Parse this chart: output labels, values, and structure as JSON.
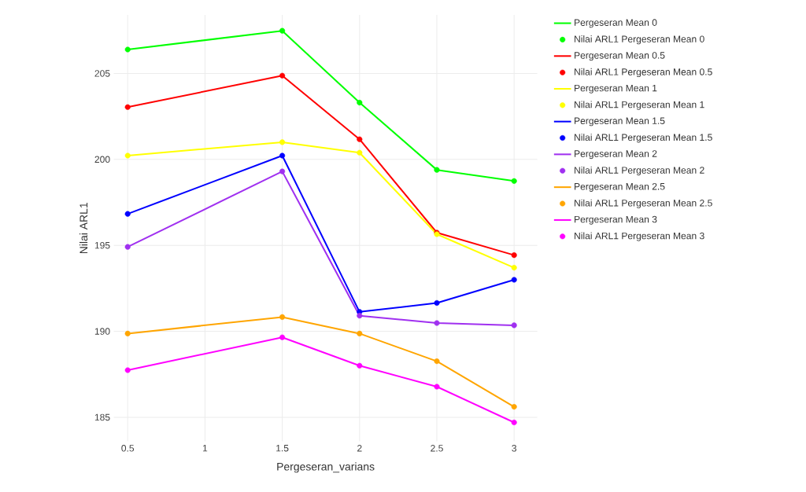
{
  "chart_data": {
    "type": "line",
    "xlabel": "Pergeseran_varians",
    "ylabel": "Nilai ARL1",
    "x": [
      0.5,
      1.5,
      2,
      2.5,
      3
    ],
    "series": [
      {
        "name": "Pergeseran Mean 0",
        "marker": "none",
        "color": "#00ff00",
        "values": [
          206.39,
          207.48,
          203.3,
          199.39,
          198.74
        ]
      },
      {
        "name": "Nilai ARL1 Pergeseran Mean 0",
        "type": "scatter",
        "marker": "circle",
        "color": "#00ff00",
        "values": [
          206.39,
          207.48,
          203.3,
          199.39,
          198.74
        ]
      },
      {
        "name": "Pergeseran Mean 0.5",
        "marker": "none",
        "color": "#ff0000",
        "values": [
          203.04,
          204.87,
          201.17,
          195.74,
          194.43
        ]
      },
      {
        "name": "Nilai ARL1 Pergeseran Mean 0.5",
        "type": "scatter",
        "marker": "circle",
        "color": "#ff0000",
        "values": [
          203.04,
          204.87,
          201.17,
          195.74,
          194.43
        ]
      },
      {
        "name": "Pergeseran Mean 1",
        "marker": "none",
        "color": "#ffff00",
        "values": [
          200.22,
          201.0,
          200.39,
          195.65,
          193.7
        ]
      },
      {
        "name": "Nilai ARL1 Pergeseran Mean 1",
        "type": "scatter",
        "marker": "circle",
        "color": "#ffff00",
        "values": [
          200.22,
          201.0,
          200.39,
          195.65,
          193.7
        ]
      },
      {
        "name": "Pergeseran Mean 1.5",
        "marker": "none",
        "color": "#0000ff",
        "values": [
          196.83,
          200.22,
          191.13,
          191.65,
          193.0
        ]
      },
      {
        "name": "Nilai ARL1 Pergeseran Mean 1.5",
        "type": "scatter",
        "marker": "circle",
        "color": "#0000ff",
        "values": [
          196.83,
          200.22,
          191.13,
          191.65,
          193.0
        ]
      },
      {
        "name": "Pergeseran Mean 2",
        "marker": "none",
        "color": "#a030f0",
        "values": [
          194.91,
          199.3,
          190.91,
          190.48,
          190.35
        ]
      },
      {
        "name": "Nilai ARL1 Pergeseran Mean 2",
        "type": "scatter",
        "marker": "circle",
        "color": "#a030f0",
        "values": [
          194.91,
          199.3,
          190.91,
          190.48,
          190.35
        ]
      },
      {
        "name": "Pergeseran Mean 2.5",
        "marker": "none",
        "color": "#ffa500",
        "values": [
          189.87,
          190.83,
          189.87,
          188.26,
          185.61
        ]
      },
      {
        "name": "Nilai ARL1 Pergeseran Mean 2.5",
        "type": "scatter",
        "marker": "circle",
        "color": "#ffa500",
        "values": [
          189.87,
          190.83,
          189.87,
          188.26,
          185.61
        ]
      },
      {
        "name": "Pergeseran Mean 3",
        "marker": "none",
        "color": "#ff00ff",
        "values": [
          187.74,
          189.65,
          188.0,
          186.78,
          184.7
        ]
      },
      {
        "name": "Nilai ARL1 Pergeseran Mean 3",
        "type": "scatter",
        "marker": "circle",
        "color": "#ff00ff",
        "values": [
          187.74,
          189.65,
          188.0,
          186.78,
          184.7
        ]
      }
    ],
    "xlim": [
      0.41,
      3.15
    ],
    "ylim": [
      183.6,
      208.4
    ],
    "xticks": [
      0.5,
      1,
      1.5,
      2,
      2.5,
      3
    ],
    "yticks": [
      185,
      190,
      195,
      200,
      205
    ],
    "grid": true,
    "legend": "right"
  }
}
